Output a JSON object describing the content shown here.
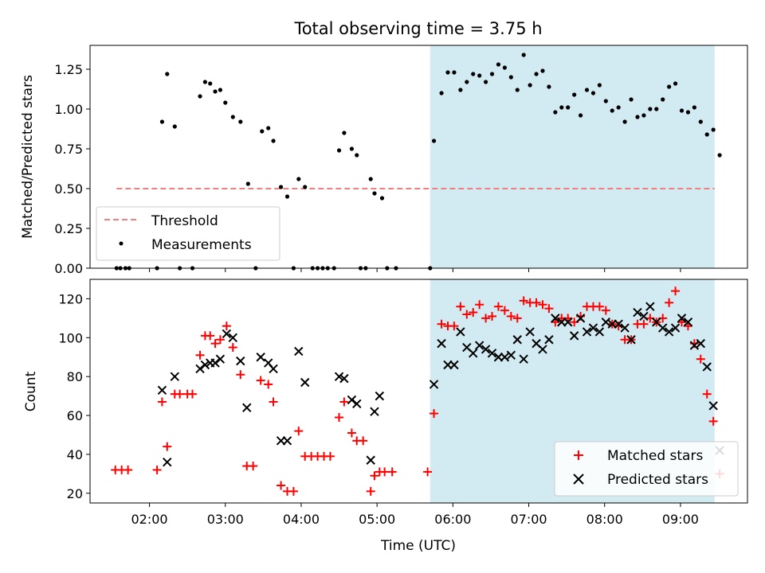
{
  "chart_data": [
    {
      "type": "scatter",
      "title": "Total observing time = 3.75 h",
      "xlabel": "",
      "ylabel": "Matched/Predicted stars",
      "xlim": [
        "01:13",
        "09:53"
      ],
      "ylim": [
        0,
        1.4
      ],
      "yticks": [
        "0.00",
        "0.25",
        "0.50",
        "0.75",
        "1.00",
        "1.25"
      ],
      "grid": false,
      "legend_position": "lower-left",
      "shaded_region": {
        "from": "05:42",
        "to": "09:27",
        "color": "#add8e6"
      },
      "threshold": {
        "label": "Threshold",
        "value": 0.5,
        "from": "01:34",
        "to": "09:27",
        "color": "#f08080"
      },
      "series": [
        {
          "name": "Measurements",
          "color": "#000000",
          "points": [
            [
              "01:34",
              0
            ],
            [
              "01:37",
              0
            ],
            [
              "01:41",
              0
            ],
            [
              "01:44",
              0
            ],
            [
              "02:06",
              0
            ],
            [
              "02:10",
              0.92
            ],
            [
              "02:14",
              1.22
            ],
            [
              "02:20",
              0.89
            ],
            [
              "02:24",
              0
            ],
            [
              "02:34",
              0
            ],
            [
              "02:40",
              1.08
            ],
            [
              "02:44",
              1.17
            ],
            [
              "02:48",
              1.16
            ],
            [
              "02:52",
              1.11
            ],
            [
              "02:56",
              1.12
            ],
            [
              "03:00",
              1.04
            ],
            [
              "03:06",
              0.95
            ],
            [
              "03:12",
              0.92
            ],
            [
              "03:18",
              0.53
            ],
            [
              "03:24",
              0
            ],
            [
              "03:29",
              0.86
            ],
            [
              "03:34",
              0.88
            ],
            [
              "03:38",
              0.8
            ],
            [
              "03:44",
              0.51
            ],
            [
              "03:49",
              0.45
            ],
            [
              "03:54",
              0
            ],
            [
              "03:58",
              0.56
            ],
            [
              "04:03",
              0.51
            ],
            [
              "04:09",
              0
            ],
            [
              "04:13",
              0
            ],
            [
              "04:17",
              0
            ],
            [
              "04:21",
              0
            ],
            [
              "04:26",
              0
            ],
            [
              "04:30",
              0.74
            ],
            [
              "04:34",
              0.85
            ],
            [
              "04:40",
              0.75
            ],
            [
              "04:44",
              0.71
            ],
            [
              "04:47",
              0
            ],
            [
              "04:51",
              0
            ],
            [
              "04:55",
              0.56
            ],
            [
              "04:58",
              0.47
            ],
            [
              "05:04",
              0.44
            ],
            [
              "05:08",
              0
            ],
            [
              "05:15",
              0
            ],
            [
              "05:42",
              0
            ],
            [
              "05:45",
              0.8
            ],
            [
              "05:51",
              1.1
            ],
            [
              "05:56",
              1.23
            ],
            [
              "06:01",
              1.23
            ],
            [
              "06:06",
              1.12
            ],
            [
              "06:11",
              1.17
            ],
            [
              "06:16",
              1.22
            ],
            [
              "06:21",
              1.21
            ],
            [
              "06:26",
              1.17
            ],
            [
              "06:31",
              1.22
            ],
            [
              "06:36",
              1.28
            ],
            [
              "06:41",
              1.26
            ],
            [
              "06:46",
              1.2
            ],
            [
              "06:51",
              1.12
            ],
            [
              "06:56",
              1.34
            ],
            [
              "07:01",
              1.15
            ],
            [
              "07:06",
              1.22
            ],
            [
              "07:11",
              1.24
            ],
            [
              "07:16",
              1.14
            ],
            [
              "07:21",
              0.98
            ],
            [
              "07:26",
              1.01
            ],
            [
              "07:31",
              1.01
            ],
            [
              "07:36",
              1.09
            ],
            [
              "07:41",
              0.96
            ],
            [
              "07:46",
              1.12
            ],
            [
              "07:51",
              1.1
            ],
            [
              "07:56",
              1.15
            ],
            [
              "08:01",
              1.05
            ],
            [
              "08:06",
              0.99
            ],
            [
              "08:11",
              1.01
            ],
            [
              "08:16",
              0.92
            ],
            [
              "08:21",
              1.06
            ],
            [
              "08:26",
              0.95
            ],
            [
              "08:31",
              0.96
            ],
            [
              "08:36",
              1.0
            ],
            [
              "08:41",
              1.0
            ],
            [
              "08:46",
              1.06
            ],
            [
              "08:51",
              1.14
            ],
            [
              "08:56",
              1.16
            ],
            [
              "09:01",
              0.99
            ],
            [
              "09:06",
              0.98
            ],
            [
              "09:11",
              1.01
            ],
            [
              "09:16",
              0.92
            ],
            [
              "09:21",
              0.84
            ],
            [
              "09:26",
              0.87
            ],
            [
              "09:31",
              0.71
            ]
          ]
        }
      ],
      "legend": [
        "Threshold",
        "Measurements"
      ]
    },
    {
      "type": "scatter",
      "title": "",
      "xlabel": "Time (UTC)",
      "ylabel": "Count",
      "xlim": [
        "01:13",
        "09:53"
      ],
      "ylim": [
        15,
        130
      ],
      "xticks": [
        "02:00",
        "03:00",
        "04:00",
        "05:00",
        "06:00",
        "07:00",
        "08:00",
        "09:00"
      ],
      "yticks": [
        "20",
        "40",
        "60",
        "80",
        "100",
        "120"
      ],
      "grid": false,
      "legend_position": "lower-right",
      "shaded_region": {
        "from": "05:42",
        "to": "09:27",
        "color": "#add8e6"
      },
      "series": [
        {
          "name": "Matched stars",
          "marker": "+",
          "color": "#ff0000",
          "points": [
            [
              "01:33",
              32
            ],
            [
              "01:38",
              32
            ],
            [
              "01:43",
              32
            ],
            [
              "02:06",
              32
            ],
            [
              "02:10",
              67
            ],
            [
              "02:14",
              44
            ],
            [
              "02:20",
              71
            ],
            [
              "02:24",
              71
            ],
            [
              "02:30",
              71
            ],
            [
              "02:34",
              71
            ],
            [
              "02:40",
              91
            ],
            [
              "02:44",
              101
            ],
            [
              "02:48",
              101
            ],
            [
              "02:52",
              97
            ],
            [
              "02:56",
              99
            ],
            [
              "03:01",
              106
            ],
            [
              "03:06",
              95
            ],
            [
              "03:12",
              81
            ],
            [
              "03:17",
              34
            ],
            [
              "03:22",
              34
            ],
            [
              "03:28",
              78
            ],
            [
              "03:34",
              76
            ],
            [
              "03:38",
              67
            ],
            [
              "03:44",
              24
            ],
            [
              "03:49",
              21
            ],
            [
              "03:54",
              21
            ],
            [
              "03:58",
              52
            ],
            [
              "04:03",
              39
            ],
            [
              "04:08",
              39
            ],
            [
              "04:13",
              39
            ],
            [
              "04:18",
              39
            ],
            [
              "04:23",
              39
            ],
            [
              "04:30",
              59
            ],
            [
              "04:34",
              67
            ],
            [
              "04:40",
              51
            ],
            [
              "04:44",
              47
            ],
            [
              "04:49",
              47
            ],
            [
              "04:55",
              21
            ],
            [
              "04:58",
              29
            ],
            [
              "05:02",
              31
            ],
            [
              "05:06",
              31
            ],
            [
              "05:12",
              31
            ],
            [
              "05:40",
              31
            ],
            [
              "05:45",
              61
            ],
            [
              "05:51",
              107
            ],
            [
              "05:56",
              106
            ],
            [
              "06:01",
              106
            ],
            [
              "06:06",
              116
            ],
            [
              "06:11",
              112
            ],
            [
              "06:16",
              113
            ],
            [
              "06:21",
              117
            ],
            [
              "06:26",
              110
            ],
            [
              "06:31",
              111
            ],
            [
              "06:36",
              116
            ],
            [
              "06:41",
              114
            ],
            [
              "06:46",
              111
            ],
            [
              "06:51",
              110
            ],
            [
              "06:56",
              119
            ],
            [
              "07:01",
              118
            ],
            [
              "07:06",
              118
            ],
            [
              "07:11",
              117
            ],
            [
              "07:16",
              115
            ],
            [
              "07:21",
              108
            ],
            [
              "07:26",
              110
            ],
            [
              "07:31",
              110
            ],
            [
              "07:36",
              108
            ],
            [
              "07:41",
              111
            ],
            [
              "07:46",
              116
            ],
            [
              "07:51",
              116
            ],
            [
              "07:56",
              116
            ],
            [
              "08:01",
              114
            ],
            [
              "08:06",
              107
            ],
            [
              "08:11",
              106
            ],
            [
              "08:16",
              99
            ],
            [
              "08:21",
              99
            ],
            [
              "08:26",
              107
            ],
            [
              "08:31",
              107
            ],
            [
              "08:36",
              110
            ],
            [
              "08:41",
              108
            ],
            [
              "08:46",
              110
            ],
            [
              "08:51",
              118
            ],
            [
              "08:56",
              124
            ],
            [
              "09:01",
              108
            ],
            [
              "09:06",
              106
            ],
            [
              "09:11",
              97
            ],
            [
              "09:16",
              89
            ],
            [
              "09:21",
              71
            ],
            [
              "09:26",
              57
            ],
            [
              "09:31",
              30
            ]
          ]
        },
        {
          "name": "Predicted stars",
          "marker": "x",
          "color": "#000000",
          "points": [
            [
              "02:10",
              73
            ],
            [
              "02:14",
              36
            ],
            [
              "02:20",
              80
            ],
            [
              "02:40",
              84
            ],
            [
              "02:44",
              86
            ],
            [
              "02:48",
              87
            ],
            [
              "02:52",
              87
            ],
            [
              "02:56",
              89
            ],
            [
              "03:01",
              102
            ],
            [
              "03:06",
              100
            ],
            [
              "03:12",
              88
            ],
            [
              "03:17",
              64
            ],
            [
              "03:28",
              90
            ],
            [
              "03:34",
              87
            ],
            [
              "03:38",
              84
            ],
            [
              "03:44",
              47
            ],
            [
              "03:49",
              47
            ],
            [
              "03:58",
              93
            ],
            [
              "04:03",
              77
            ],
            [
              "04:30",
              80
            ],
            [
              "04:34",
              79
            ],
            [
              "04:40",
              68
            ],
            [
              "04:44",
              66
            ],
            [
              "04:55",
              37
            ],
            [
              "04:58",
              62
            ],
            [
              "05:02",
              70
            ],
            [
              "05:45",
              76
            ],
            [
              "05:51",
              97
            ],
            [
              "05:56",
              86
            ],
            [
              "06:01",
              86
            ],
            [
              "06:06",
              103
            ],
            [
              "06:11",
              95
            ],
            [
              "06:16",
              92
            ],
            [
              "06:21",
              96
            ],
            [
              "06:26",
              94
            ],
            [
              "06:31",
              92
            ],
            [
              "06:36",
              90
            ],
            [
              "06:41",
              90
            ],
            [
              "06:46",
              91
            ],
            [
              "06:51",
              99
            ],
            [
              "06:56",
              89
            ],
            [
              "07:01",
              103
            ],
            [
              "07:06",
              97
            ],
            [
              "07:11",
              94
            ],
            [
              "07:16",
              99
            ],
            [
              "07:21",
              110
            ],
            [
              "07:26",
              108
            ],
            [
              "07:31",
              108
            ],
            [
              "07:36",
              101
            ],
            [
              "07:41",
              110
            ],
            [
              "07:46",
              103
            ],
            [
              "07:51",
              105
            ],
            [
              "07:56",
              103
            ],
            [
              "08:01",
              108
            ],
            [
              "08:06",
              107
            ],
            [
              "08:11",
              107
            ],
            [
              "08:16",
              105
            ],
            [
              "08:21",
              99
            ],
            [
              "08:26",
              113
            ],
            [
              "08:31",
              111
            ],
            [
              "08:36",
              116
            ],
            [
              "08:41",
              108
            ],
            [
              "08:46",
              105
            ],
            [
              "08:51",
              103
            ],
            [
              "08:56",
              105
            ],
            [
              "09:01",
              110
            ],
            [
              "09:06",
              108
            ],
            [
              "09:11",
              96
            ],
            [
              "09:16",
              97
            ],
            [
              "09:21",
              85
            ],
            [
              "09:26",
              65
            ],
            [
              "09:31",
              42
            ]
          ]
        }
      ],
      "legend": [
        "Matched stars",
        "Predicted stars"
      ]
    }
  ]
}
